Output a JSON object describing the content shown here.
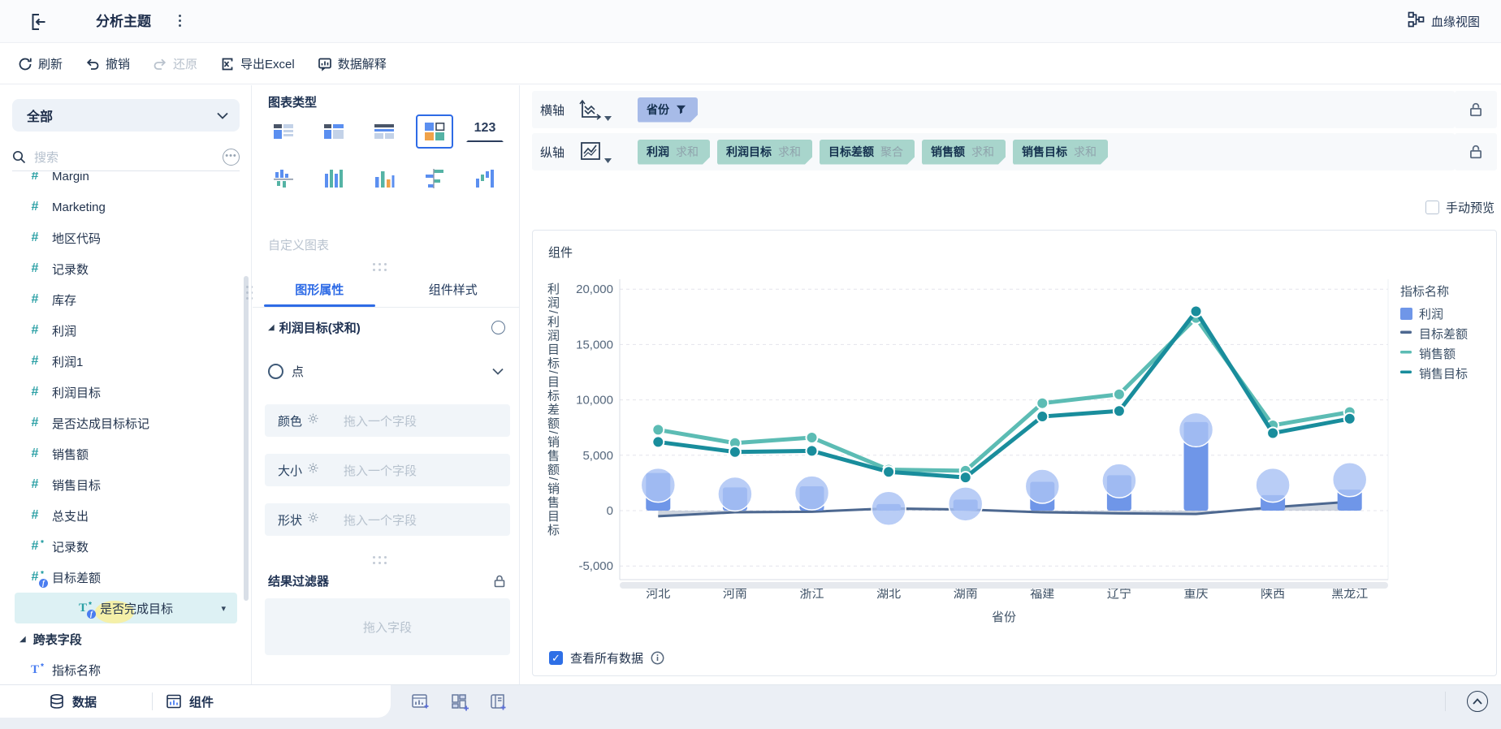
{
  "top_bar": {
    "title": "分析主题",
    "lineage": "血缘视图"
  },
  "toolbar": {
    "refresh": "刷新",
    "undo": "撤销",
    "redo": "还原",
    "export_excel": "导出Excel",
    "explain": "数据解释"
  },
  "sidebar": {
    "scope": "全部",
    "search_placeholder": "搜索",
    "fields": [
      {
        "name": "Margin",
        "icon": "#"
      },
      {
        "name": "Marketing",
        "icon": "#"
      },
      {
        "name": "地区代码",
        "icon": "#"
      },
      {
        "name": "记录数",
        "icon": "#"
      },
      {
        "name": "库存",
        "icon": "#"
      },
      {
        "name": "利润",
        "icon": "#"
      },
      {
        "name": "利润1",
        "icon": "#"
      },
      {
        "name": "利润目标",
        "icon": "#"
      },
      {
        "name": "是否达成目标标记",
        "icon": "#"
      },
      {
        "name": "销售额",
        "icon": "#"
      },
      {
        "name": "销售目标",
        "icon": "#"
      },
      {
        "name": "总支出",
        "icon": "#"
      },
      {
        "name": "记录数",
        "icon": "#",
        "star": true
      },
      {
        "name": "目标差额",
        "icon": "#",
        "star": true,
        "fx": true
      },
      {
        "name": "是否完成目标",
        "icon": "T",
        "star": true,
        "fx": true,
        "selected": true
      }
    ],
    "group_label": "跨表字段",
    "group_fields": [
      {
        "name": "指标名称",
        "icon": "T",
        "star": true,
        "blue": true
      }
    ]
  },
  "panel": {
    "chart_type_label": "图表类型",
    "kpi_label": "123",
    "custom_label": "自定义图表",
    "tabs": [
      "图形属性",
      "组件样式"
    ],
    "series_section": "利润目标(求和)",
    "shape_label": "点",
    "attr_rows": [
      {
        "label": "颜色",
        "placeholder": "拖入一个字段"
      },
      {
        "label": "大小",
        "placeholder": "拖入一个字段"
      },
      {
        "label": "形状",
        "placeholder": "拖入一个字段"
      }
    ],
    "filter_label": "结果过滤器",
    "drop_placeholder": "拖入字段"
  },
  "axes": {
    "x_axis_label": "横轴",
    "y_axis_label": "纵轴",
    "x_pills": [
      {
        "name": "省份",
        "filter": true
      }
    ],
    "y_pills": [
      {
        "name": "利润",
        "agg": "求和"
      },
      {
        "name": "利润目标",
        "agg": "求和"
      },
      {
        "name": "目标差额",
        "agg": "聚合"
      },
      {
        "name": "销售额",
        "agg": "求和"
      },
      {
        "name": "销售目标",
        "agg": "求和"
      }
    ]
  },
  "preview": {
    "manual_preview": "手动预览",
    "component_title": "组件",
    "view_all": "查看所有数据"
  },
  "chart_data": {
    "type": "combo",
    "x_title": "省份",
    "y_axis_title": "利润/利润目标/目标差额/销售额/销售目标",
    "categories": [
      "河北",
      "河南",
      "浙江",
      "湖北",
      "湖南",
      "福建",
      "辽宁",
      "重庆",
      "陕西",
      "黑龙江"
    ],
    "y_ticks": [
      20000,
      15000,
      10000,
      5000,
      0,
      -5000
    ],
    "ylim": [
      -6600,
      21200
    ],
    "grid": true,
    "legend_position": "right",
    "legend_title": "指标名称",
    "legend": [
      "利润",
      "目标差额",
      "销售额",
      "销售目标"
    ],
    "series": [
      {
        "name": "利润",
        "type": "bar",
        "color": "#6f96e8",
        "values": [
          3400,
          2100,
          2200,
          600,
          1000,
          2600,
          3200,
          8000,
          1400,
          1900
        ]
      },
      {
        "name": "利润目标",
        "type": "point",
        "color": "#a9c2f4",
        "values": [
          2300,
          1500,
          1600,
          200,
          600,
          2200,
          2700,
          7300,
          2300,
          2800
        ]
      },
      {
        "name": "目标差额",
        "type": "area-line",
        "color": "#4d6890",
        "values": [
          -500,
          -150,
          -100,
          200,
          100,
          -150,
          -250,
          -300,
          300,
          800
        ]
      },
      {
        "name": "销售额",
        "type": "line",
        "color": "#5cbcb4",
        "values": [
          7300,
          6100,
          6600,
          3700,
          3600,
          9700,
          10500,
          17400,
          7700,
          8900
        ]
      },
      {
        "name": "销售目标",
        "type": "line",
        "color": "#198d9c",
        "values": [
          6200,
          5300,
          5400,
          3500,
          3000,
          8500,
          9000,
          18000,
          7000,
          8300
        ]
      }
    ]
  },
  "bottom": {
    "tabs": [
      "数据",
      "组件"
    ]
  },
  "colors": {
    "accent": "#2e6be6",
    "teal_pill": "#a8d5cc",
    "blue_pill": "#a7bbe8",
    "bar": "#6f96e8",
    "point": "#a9c2f4",
    "gap_line": "#4d6890",
    "sales_line": "#5cbcb4",
    "sales_target_line": "#198d9c",
    "field_icon": "#2ba0a5",
    "checkbox_checked": "#2e6fe6"
  }
}
